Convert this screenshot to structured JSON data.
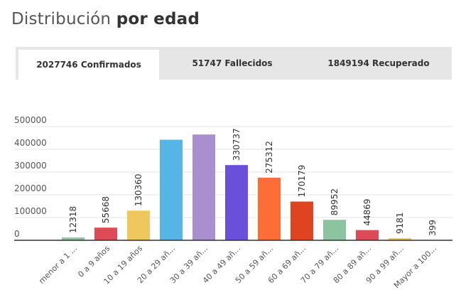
{
  "header": {
    "title_light": "Distribución",
    "title_bold": "por edad"
  },
  "tabs": [
    {
      "label": "2027746 Confirmados",
      "active": true
    },
    {
      "label": "51747 Fallecidos",
      "active": false
    },
    {
      "label": "1849194 Recuperado",
      "active": false
    }
  ],
  "chart_data": {
    "type": "bar",
    "title": "",
    "xlabel": "",
    "ylabel": "",
    "ylim": [
      0,
      500000
    ],
    "yticks": [
      0,
      100000,
      200000,
      300000,
      400000,
      500000
    ],
    "grid": true,
    "categories": [
      "menor a 1 ...",
      "0 a 9 años",
      "10 a 19 años",
      "20 a 29 añ...",
      "30 a 39 añ...",
      "40 a 49 añ...",
      "50 a 59 añ...",
      "60 a 69 añ...",
      "70 a 79 añ...",
      "80 a 89 añ...",
      "90 a 99 añ...",
      "Mayor a 100..."
    ],
    "values": [
      12318,
      55668,
      130360,
      442000,
      465000,
      330737,
      275312,
      170179,
      89952,
      44869,
      9181,
      399
    ],
    "data_labels": [
      "12318",
      "55668",
      "130360",
      "",
      "",
      "330737",
      "275312",
      "170179",
      "89952",
      "44869",
      "9181",
      "399"
    ],
    "colors": [
      "#8cc4a0",
      "#dd4b56",
      "#efc85d",
      "#56b4e6",
      "#a98fcf",
      "#6a4fdb",
      "#fc6d37",
      "#e0431f",
      "#8cc4a0",
      "#dd4b56",
      "#efc85d",
      "#56b4e6"
    ]
  }
}
